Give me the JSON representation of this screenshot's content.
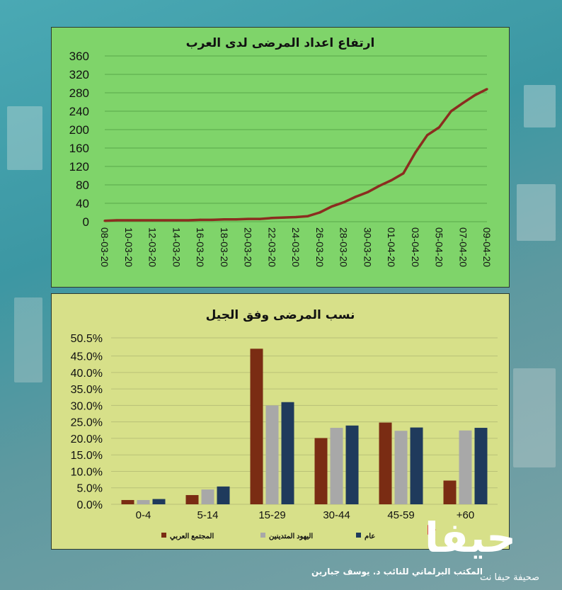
{
  "colors": {
    "line": "#8b2d1f",
    "arab": "#7a2c13",
    "haredi": "#a8a8a8",
    "general": "#1f3a5c",
    "logo_accent": "#d8262d"
  },
  "chart_data": [
    {
      "type": "line",
      "title": "ارتفاع اعداد المرضى لدى العرب",
      "x_tick_labels": [
        "08-03-20",
        "10-03-20",
        "12-03-20",
        "14-03-20",
        "16-03-20",
        "18-03-20",
        "20-03-20",
        "22-03-20",
        "24-03-20",
        "26-03-20",
        "28-03-20",
        "30-03-20",
        "01-04-20",
        "03-04-20",
        "05-04-20",
        "07-04-20",
        "09-04-20"
      ],
      "y_ticks": [
        0,
        40,
        80,
        120,
        160,
        200,
        240,
        280,
        320,
        360
      ],
      "ylim": [
        0,
        360
      ],
      "x": [
        "08-03-20",
        "09-03-20",
        "10-03-20",
        "11-03-20",
        "12-03-20",
        "13-03-20",
        "14-03-20",
        "15-03-20",
        "16-03-20",
        "17-03-20",
        "18-03-20",
        "19-03-20",
        "20-03-20",
        "21-03-20",
        "22-03-20",
        "23-03-20",
        "24-03-20",
        "25-03-20",
        "26-03-20",
        "27-03-20",
        "28-03-20",
        "29-03-20",
        "30-03-20",
        "31-03-20",
        "01-04-20",
        "02-04-20",
        "03-04-20",
        "04-04-20",
        "05-04-20",
        "06-04-20",
        "07-04-20",
        "08-04-20",
        "09-04-20"
      ],
      "values": [
        2,
        3,
        3,
        3,
        3,
        3,
        3,
        3,
        4,
        4,
        5,
        5,
        6,
        6,
        8,
        9,
        10,
        12,
        20,
        33,
        42,
        54,
        64,
        78,
        90,
        105,
        150,
        188,
        205,
        240,
        258,
        275,
        288
      ],
      "grid": true,
      "legend": "none"
    },
    {
      "type": "bar",
      "title": "نسب المرضى وفق الجيل",
      "categories": [
        "0-4",
        "5-14",
        "15-29",
        "30-44",
        "45-59",
        "+60"
      ],
      "y_ticks": [
        "0.0%",
        "5.0%",
        "10.0%",
        "15.0%",
        "20.0%",
        "25.0%",
        "30.0%",
        "35.0%",
        "40.0%",
        "45.0%",
        "50.5%"
      ],
      "ylim": [
        0,
        50.5
      ],
      "series": [
        {
          "name": "المجتمع العربي",
          "values": [
            1.3,
            2.8,
            47.2,
            20.1,
            24.8,
            7.2
          ]
        },
        {
          "name": "اليهود المتدينين",
          "values": [
            1.3,
            4.5,
            30.0,
            23.2,
            22.3,
            22.4
          ]
        },
        {
          "name": "عام",
          "values": [
            1.6,
            5.4,
            31.0,
            23.9,
            23.3,
            23.2
          ]
        }
      ],
      "grid": true,
      "legend": "bottom"
    }
  ],
  "footer": {
    "credit": "المكتب البرلماني للنائب د. يوسف جبارين",
    "logo": "حيفا",
    "logo_sub": "صحيفة حيفا نت"
  }
}
